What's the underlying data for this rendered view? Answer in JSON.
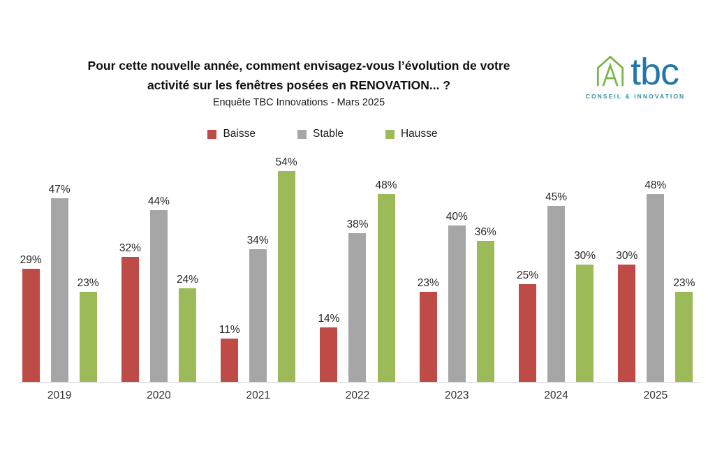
{
  "header": {
    "title_line1": "Pour cette nouvelle année, comment envisagez-vous l’évolution de votre",
    "title_line2": "activité sur les fenêtres posées en RENOVATION... ?",
    "subtitle": "Enquête TBC Innovations - Mars 2025"
  },
  "logo": {
    "name": "tbc",
    "tagline": "CONSEIL & INNOVATION",
    "text_color": "#2177a9",
    "tagline_color": "#2e8fa8",
    "icon_color": "#7ab648"
  },
  "chart_data": {
    "type": "bar",
    "title": "Pour cette nouvelle année, comment envisagez-vous l’évolution de votre activité sur les fenêtres posées en RENOVATION... ?",
    "subtitle": "Enquête TBC Innovations - Mars 2025",
    "categories": [
      "2019",
      "2020",
      "2021",
      "2022",
      "2023",
      "2024",
      "2025"
    ],
    "series": [
      {
        "name": "Baisse",
        "color": "#bf4b47",
        "values": [
          29,
          32,
          11,
          14,
          23,
          25,
          30
        ]
      },
      {
        "name": "Stable",
        "color": "#a6a6a6",
        "values": [
          47,
          44,
          34,
          38,
          40,
          45,
          48
        ]
      },
      {
        "name": "Hausse",
        "color": "#9cba58",
        "values": [
          23,
          24,
          54,
          48,
          36,
          30,
          23
        ]
      }
    ],
    "value_suffix": "%",
    "ylim": [
      0,
      60
    ],
    "grid": false,
    "legend_position": "top",
    "xlabel": "",
    "ylabel": ""
  }
}
